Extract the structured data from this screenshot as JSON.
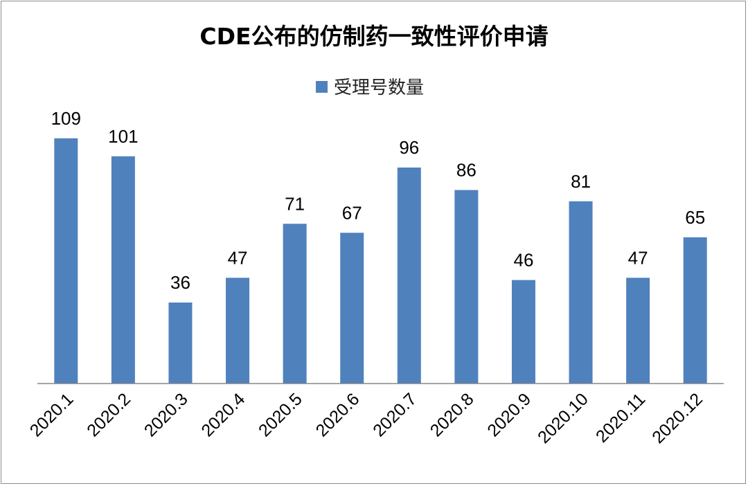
{
  "chart_data": {
    "type": "bar",
    "title": "CDE公布的仿制药一致性评价申请",
    "categories": [
      "2020.1",
      "2020.2",
      "2020.3",
      "2020.4",
      "2020.5",
      "2020.6",
      "2020.7",
      "2020.8",
      "2020.9",
      "2020.10",
      "2020.11",
      "2020.12"
    ],
    "series": [
      {
        "name": "受理号数量",
        "values": [
          109,
          101,
          36,
          47,
          71,
          67,
          96,
          86,
          46,
          81,
          47,
          65
        ],
        "color": "#4f81bd"
      }
    ],
    "ylim": [
      0,
      120
    ],
    "grid": false,
    "legend_position": "top-center",
    "data_labels": true
  }
}
